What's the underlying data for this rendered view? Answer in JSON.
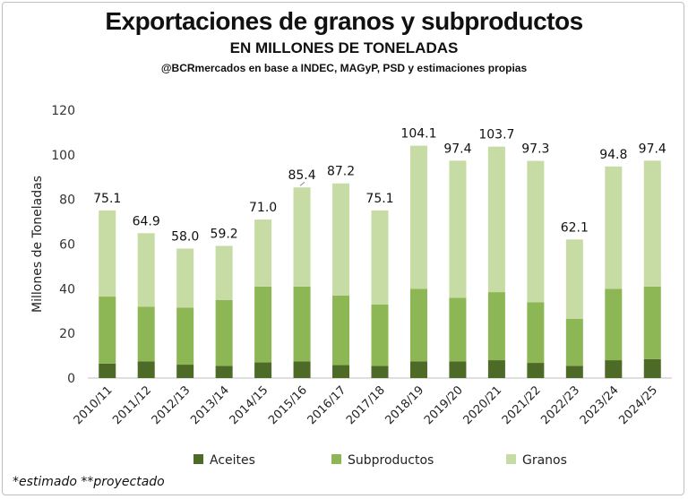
{
  "header": {
    "title": "Exportaciones de granos y subproductos",
    "subtitle": "EN MILLONES DE TONELADAS",
    "source": "@BCRmercados en base a INDEC, MAGyP, PSD y estimaciones propias"
  },
  "footnote": "*estimado  **proyectado",
  "colors": {
    "Aceites": "#4d6a27",
    "Subproductos": "#8db654",
    "Granos": "#c6dca4"
  },
  "chart_data": {
    "type": "bar",
    "stacked": true,
    "title": "Exportaciones de granos y subproductos",
    "ylabel": "Millones de Toneladas",
    "ylim": [
      0,
      120
    ],
    "yticks": [
      0,
      20,
      40,
      60,
      80,
      100,
      120
    ],
    "grid": false,
    "legend": "bottom",
    "categories": [
      "2010/11",
      "2011/12",
      "2012/13",
      "2013/14",
      "2014/15",
      "2015/16",
      "2016/17",
      "2017/18",
      "2018/19",
      "2019/20",
      "2020/21",
      "2021/22",
      "2022/23",
      "2023/24",
      "2024/25"
    ],
    "series": [
      {
        "name": "Aceites",
        "values": [
          6.5,
          7.5,
          6.0,
          5.5,
          7.0,
          7.5,
          5.8,
          5.5,
          7.5,
          7.5,
          8.0,
          6.8,
          5.5,
          8.0,
          8.5
        ]
      },
      {
        "name": "Subproductos",
        "values": [
          30.0,
          24.5,
          25.5,
          29.5,
          34.0,
          33.5,
          31.2,
          27.5,
          32.5,
          28.5,
          30.5,
          27.2,
          21.0,
          32.0,
          32.5
        ]
      },
      {
        "name": "Granos",
        "values": [
          38.6,
          32.9,
          26.5,
          24.2,
          30.0,
          44.4,
          50.2,
          42.1,
          64.1,
          61.4,
          65.2,
          63.3,
          35.6,
          54.8,
          56.4
        ]
      }
    ],
    "totals": [
      "75.1",
      "64.9",
      "58.0",
      "59.2",
      "71.0",
      "85.4",
      "87.2",
      "75.1",
      "104.1",
      "97.4",
      "103.7",
      "97.3",
      "62.1",
      "94.8",
      "97.4"
    ]
  }
}
